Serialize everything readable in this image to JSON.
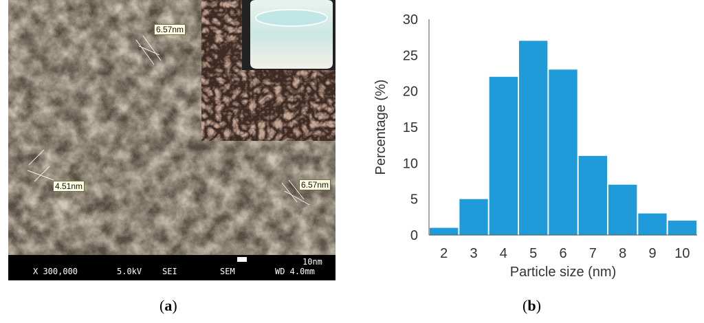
{
  "panel_a": {
    "label_letter": "a",
    "measurements": [
      "6.57nm",
      "4.51nm",
      "6.57nm"
    ],
    "footer": {
      "magnification": "X 300,000",
      "voltage": "5.0kV",
      "detector": "SEI",
      "mode": "SEM",
      "scale": "10nm",
      "working_distance": "WD 4.0mm"
    }
  },
  "panel_b": {
    "label_letter": "b"
  },
  "chart_data": {
    "type": "bar",
    "categories": [
      "2",
      "3",
      "4",
      "5",
      "6",
      "7",
      "8",
      "9",
      "10"
    ],
    "values": [
      1,
      5,
      22,
      27,
      23,
      11,
      7,
      3,
      2
    ],
    "title": "",
    "xlabel": "Particle size (nm)",
    "ylabel": "Percentage (%)",
    "ylim": [
      0,
      30
    ],
    "yticks": [
      "0",
      "5",
      "10",
      "15",
      "20",
      "25",
      "30"
    ],
    "bar_color": "#1f9bd9",
    "grid": false,
    "legend": "none"
  }
}
